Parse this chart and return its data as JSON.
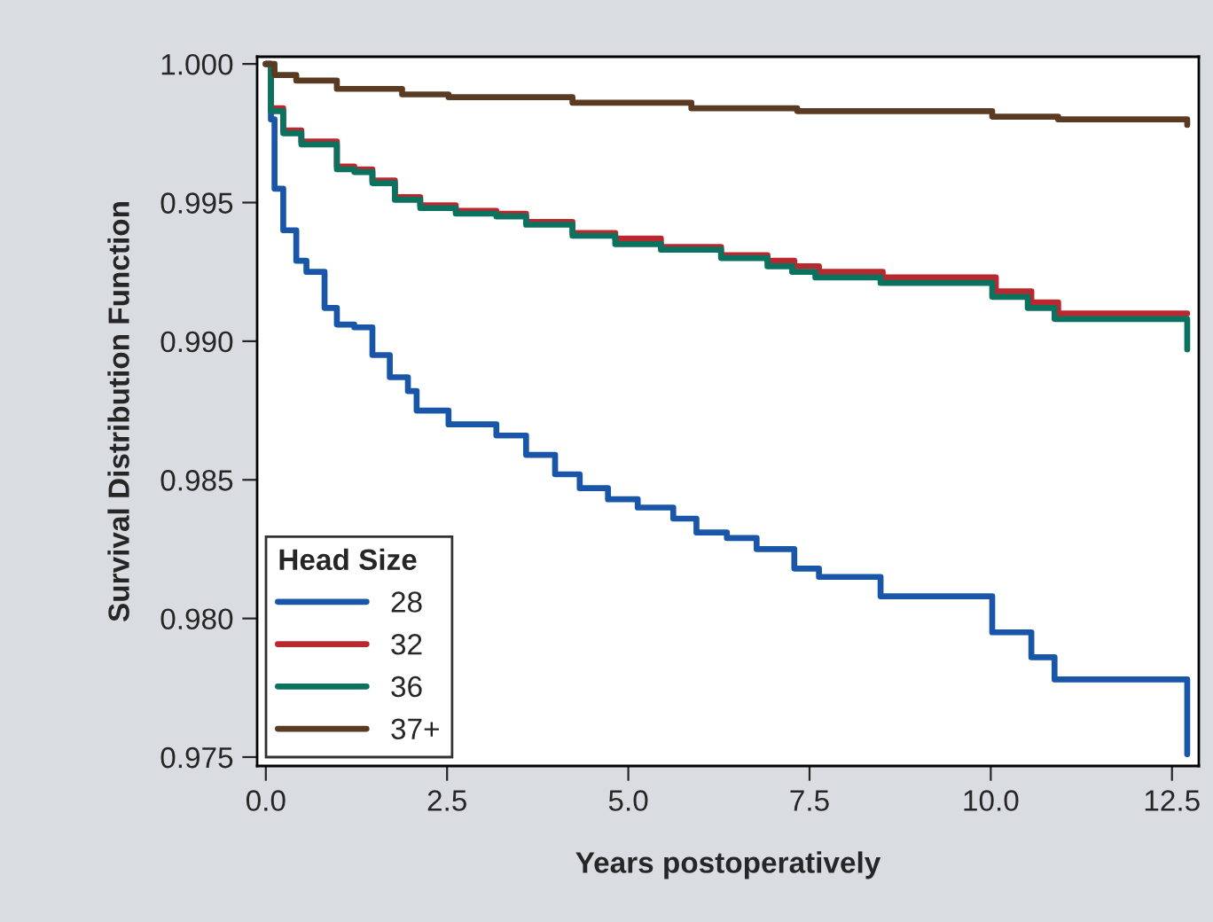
{
  "chart_data": {
    "type": "step",
    "xlabel": "Years postoperatively",
    "ylabel": "Survival Distribution Function",
    "legend_title": "Head Size",
    "legend": "bottom left",
    "grid": false,
    "marker": "none",
    "line_style": "solid",
    "xlim": [
      -0.12,
      12.87
    ],
    "ylim": [
      0.97468,
      1.00026
    ],
    "xticks": [
      {
        "value": 0,
        "label": "0.0"
      },
      {
        "value": 2.5,
        "label": "2.5"
      },
      {
        "value": 5,
        "label": "5.0"
      },
      {
        "value": 7.5,
        "label": "7.5"
      },
      {
        "value": 10,
        "label": "10.0"
      },
      {
        "value": 12.5,
        "label": "12.5"
      }
    ],
    "yticks": [
      {
        "value": 0.975,
        "label": "0.975"
      },
      {
        "value": 0.98,
        "label": "0.980"
      },
      {
        "value": 0.985,
        "label": "0.985"
      },
      {
        "value": 0.99,
        "label": "0.990"
      },
      {
        "value": 0.995,
        "label": "0.995"
      },
      {
        "value": 1.0,
        "label": "1.000"
      }
    ],
    "series": [
      {
        "name": "28",
        "color": "#1a56a8",
        "x": [
          0,
          0.07,
          0.12,
          0.24,
          0.42,
          0.56,
          0.81,
          0.98,
          1.22,
          1.47,
          1.71,
          1.96,
          2.08,
          2.52,
          3.18,
          3.59,
          3.99,
          4.33,
          4.72,
          5.13,
          5.62,
          5.94,
          6.36,
          6.77,
          7.29,
          7.63,
          8.48,
          10.02,
          10.56,
          10.88,
          12.71
        ],
        "values": [
          1.0,
          0.998,
          0.9955,
          0.994,
          0.9929,
          0.9925,
          0.9912,
          0.9906,
          0.9905,
          0.9895,
          0.9887,
          0.9882,
          0.9875,
          0.987,
          0.9866,
          0.9859,
          0.9852,
          0.9847,
          0.9843,
          0.984,
          0.9836,
          0.9831,
          0.9829,
          0.9825,
          0.9818,
          0.9815,
          0.9808,
          0.9795,
          0.9786,
          0.9778,
          0.9751
        ]
      },
      {
        "name": "32",
        "color": "#b8282e",
        "x": [
          0,
          0.07,
          0.24,
          0.49,
          0.98,
          1.22,
          1.47,
          1.78,
          2.13,
          2.62,
          3.18,
          3.59,
          4.23,
          4.82,
          5.45,
          6.28,
          6.92,
          7.29,
          7.63,
          8.51,
          10.07,
          10.56,
          10.93,
          12.71
        ],
        "values": [
          1.0,
          0.9984,
          0.9976,
          0.9972,
          0.9963,
          0.9962,
          0.9958,
          0.9952,
          0.9949,
          0.9947,
          0.9946,
          0.9943,
          0.9939,
          0.9937,
          0.9934,
          0.9931,
          0.9929,
          0.9927,
          0.9925,
          0.9923,
          0.9918,
          0.9914,
          0.991,
          0.991
        ]
      },
      {
        "name": "36",
        "color": "#0c7260",
        "x": [
          0,
          0.07,
          0.24,
          0.49,
          0.98,
          1.22,
          1.47,
          1.78,
          2.13,
          2.62,
          3.18,
          3.59,
          4.23,
          4.82,
          5.45,
          6.28,
          6.92,
          7.26,
          7.58,
          8.48,
          10.02,
          10.51,
          10.88,
          12.71
        ],
        "values": [
          1.0,
          0.9983,
          0.9975,
          0.9971,
          0.9962,
          0.9961,
          0.9957,
          0.9951,
          0.9948,
          0.9946,
          0.9945,
          0.9942,
          0.9938,
          0.9935,
          0.9933,
          0.993,
          0.9927,
          0.9925,
          0.9923,
          0.9921,
          0.9916,
          0.9912,
          0.9908,
          0.9897
        ]
      },
      {
        "name": "37+",
        "color": "#5a3b22",
        "x": [
          0,
          0.12,
          0.42,
          0.98,
          1.88,
          2.52,
          4.23,
          5.87,
          7.33,
          8.44,
          10.02,
          10.56,
          10.93,
          12.71
        ],
        "values": [
          1.0,
          0.9996,
          0.9994,
          0.9991,
          0.9989,
          0.9988,
          0.9986,
          0.9984,
          0.9983,
          0.9983,
          0.9981,
          0.9981,
          0.998,
          0.9978
        ]
      }
    ]
  }
}
